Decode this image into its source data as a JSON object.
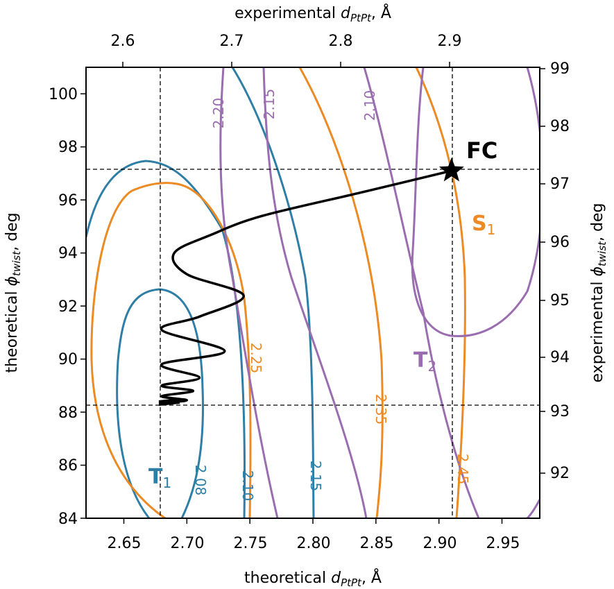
{
  "chart_data": {
    "type": "contour",
    "axes": {
      "bottom": {
        "label": "theoretical",
        "label_sub": "PtPt",
        "label_unit": ", Å",
        "range": [
          2.62,
          2.98
        ],
        "ticks": [
          "2.65",
          "2.70",
          "2.75",
          "2.80",
          "2.85",
          "2.90",
          "2.95"
        ]
      },
      "left": {
        "label": "theoretical",
        "label_sub": "twist",
        "label_unit": ", deg",
        "range": [
          84,
          101
        ],
        "ticks": [
          "84",
          "86",
          "88",
          "90",
          "92",
          "94",
          "96",
          "98",
          "100"
        ]
      },
      "top": {
        "label": "experimental",
        "label_sub": "PtPt",
        "label_unit": ", Å",
        "ticks": [
          "2.6",
          "2.7",
          "2.8",
          "2.9"
        ]
      },
      "right": {
        "label": "experimental",
        "label_sub": "twist",
        "label_unit": ", deg",
        "ticks": [
          "92",
          "93",
          "94",
          "95",
          "96",
          "97",
          "98",
          "99"
        ]
      }
    },
    "colors": {
      "T1": "#2e7ea6",
      "S1": "#ec8a24",
      "T2": "#9a6db0",
      "trajectory": "#000000"
    },
    "states": [
      {
        "id": "T1",
        "main": "T",
        "sub": "1",
        "color": "#2e7ea6"
      },
      {
        "id": "S1",
        "main": "S",
        "sub": "1",
        "color": "#ec8a24"
      },
      {
        "id": "T2",
        "main": "T",
        "sub": "2",
        "color": "#9a6db0"
      }
    ],
    "contour_levels": {
      "T1": [
        "2.08",
        "2.10",
        "2.15"
      ],
      "S1": [
        "2.25",
        "2.35",
        "2.45"
      ],
      "T2": [
        "2.20",
        "2.15",
        "2.10"
      ]
    },
    "marker": {
      "label": "FC",
      "x": 2.91,
      "y": 97.1
    },
    "reference_lines": {
      "x": [
        2.68,
        2.91
      ],
      "y": [
        88.3,
        97.1
      ]
    },
    "trajectory": {
      "start": [
        2.91,
        97.1
      ],
      "end": [
        2.68,
        88.4
      ],
      "points": [
        [
          2.91,
          97.1
        ],
        [
          2.84,
          96.3
        ],
        [
          2.76,
          95.4
        ],
        [
          2.72,
          94.7
        ],
        [
          2.69,
          94.0
        ],
        [
          2.7,
          93.2
        ],
        [
          2.745,
          92.4
        ],
        [
          2.71,
          91.6
        ],
        [
          2.68,
          91.1
        ],
        [
          2.73,
          90.3
        ],
        [
          2.68,
          89.8
        ],
        [
          2.71,
          89.3
        ],
        [
          2.68,
          89.0
        ],
        [
          2.705,
          88.8
        ],
        [
          2.68,
          88.6
        ],
        [
          2.7,
          88.45
        ],
        [
          2.68,
          88.35
        ]
      ]
    }
  }
}
